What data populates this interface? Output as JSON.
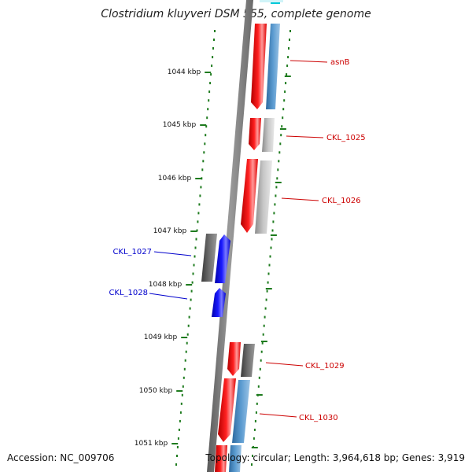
{
  "title": "Clostridium kluyveri DSM 555, complete genome",
  "accession": "Accession: NC_009706",
  "topology": "Topology: circular; Length: 3,964,618 bp; Genes: 3,919",
  "colors": {
    "backbone": "#808080",
    "tick": "#1e7b1e",
    "forward_gene": "#ff0000",
    "reverse_gene": "#0000ff",
    "forward_label": "#cc0000",
    "reverse_label": "#0000cc",
    "blast_blue": "#4f8ec6",
    "blast_gray": "#b8b8b8",
    "blast_dark": "#5a5a5a",
    "cyan": "#00c8d8"
  },
  "ticks": [
    {
      "label": "1044 kbp"
    },
    {
      "label": "1045 kbp"
    },
    {
      "label": "1046 kbp"
    },
    {
      "label": "1047 kbp"
    },
    {
      "label": "1048 kbp"
    },
    {
      "label": "1049 kbp"
    },
    {
      "label": "1050 kbp"
    },
    {
      "label": "1051 kbp"
    }
  ],
  "genes": [
    {
      "name": "asnB",
      "strand": "forward"
    },
    {
      "name": "CKL_1025",
      "strand": "forward"
    },
    {
      "name": "CKL_1026",
      "strand": "forward"
    },
    {
      "name": "CKL_1027",
      "strand": "reverse"
    },
    {
      "name": "CKL_1028",
      "strand": "reverse"
    },
    {
      "name": "CKL_1029",
      "strand": "forward"
    },
    {
      "name": "CKL_1030",
      "strand": "forward"
    }
  ]
}
